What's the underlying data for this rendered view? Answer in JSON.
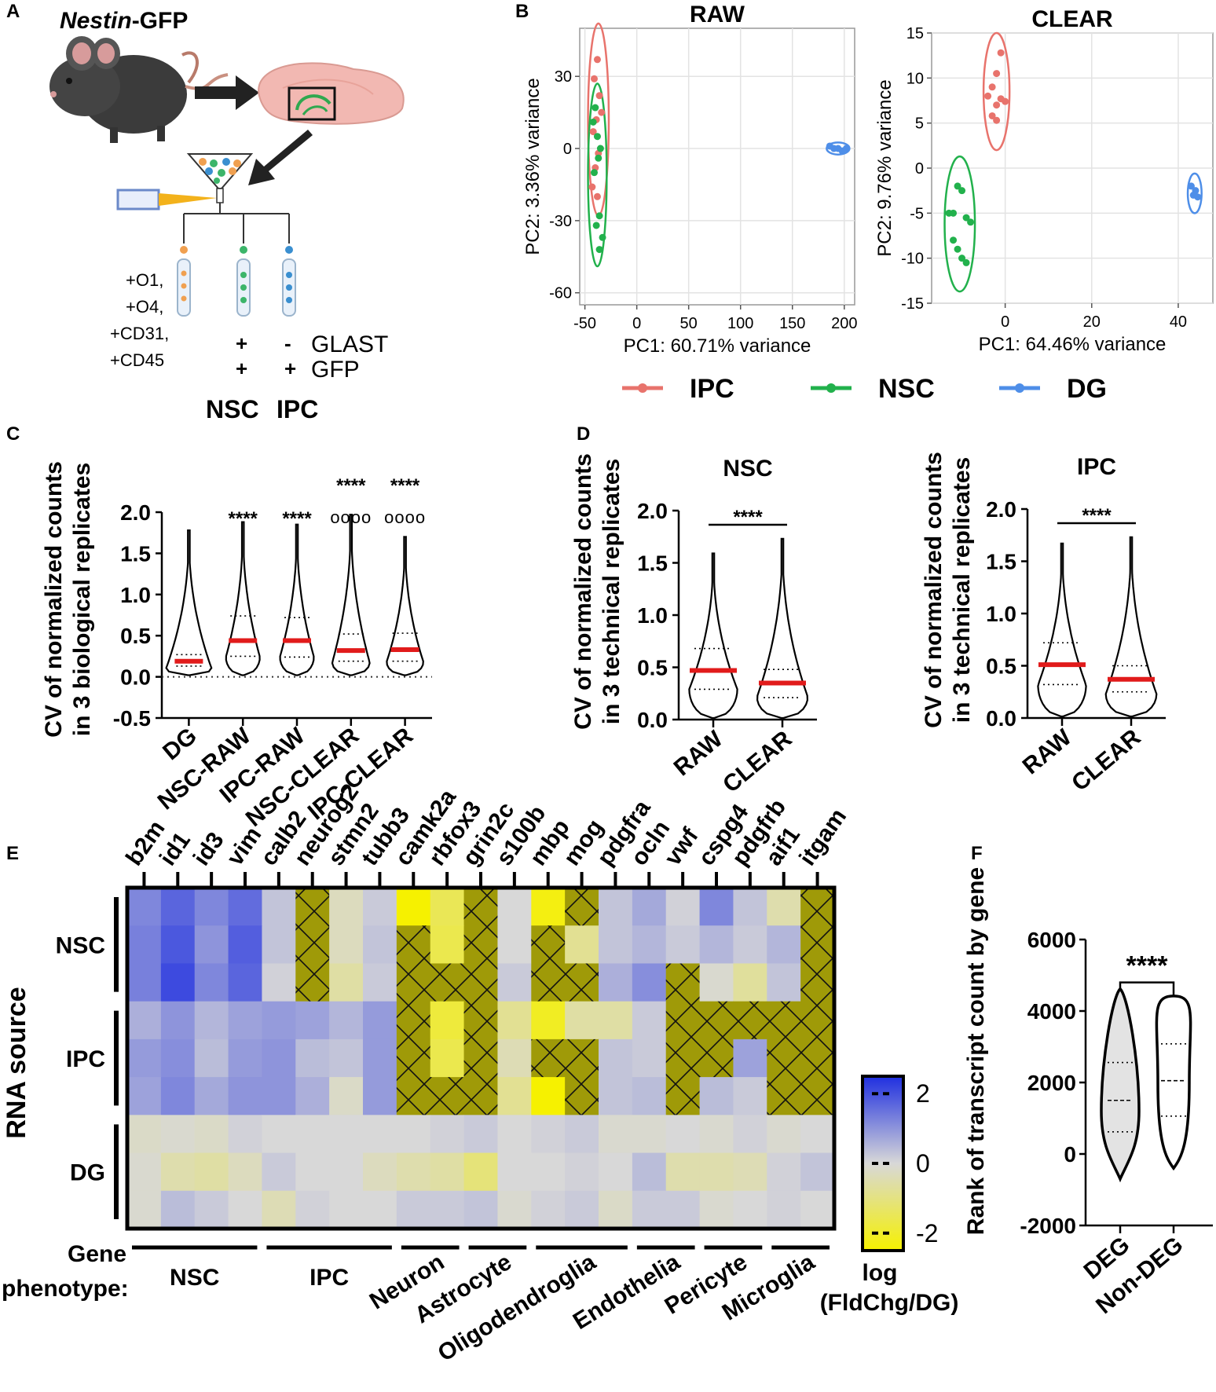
{
  "panel_labels": {
    "a": "A",
    "b": "B",
    "c": "C",
    "d": "D",
    "e": "E",
    "f": "F"
  },
  "panel_a": {
    "title_italic": "Nestin",
    "title_rest": "-GFP",
    "markers_left": [
      "+O1,",
      "+O4,",
      "+CD31,",
      "+CD45"
    ],
    "glast_row": [
      "+",
      "-",
      "GLAST"
    ],
    "gfp_row": [
      "+",
      "+",
      "GFP"
    ],
    "populations": [
      "NSC",
      "IPC"
    ],
    "colors": {
      "orange": "#f0a050",
      "green": "#3cb56a",
      "blue": "#3a8fd0",
      "mouse": "#3b3b3b",
      "brain": "#f2b8b2"
    }
  },
  "panel_b": {
    "chart_data": [
      {
        "type": "scatter",
        "title": "RAW",
        "xlabel": "PC1: 60.71% variance",
        "ylabel": "PC2: 3.36% variance",
        "xlim": [
          -55,
          210
        ],
        "ylim": [
          -65,
          50
        ],
        "xticks": [
          -50,
          0,
          50,
          100,
          150,
          200
        ],
        "yticks": [
          30,
          0,
          -30,
          -60
        ],
        "series": [
          {
            "name": "IPC",
            "color": "#e8736c",
            "x": [
              -38,
              -41,
              -36,
              -39,
              -42,
              -37,
              -40,
              -34,
              -38,
              -43
            ],
            "y": [
              37,
              29,
              22,
              12,
              7,
              -2,
              -8,
              15,
              -20,
              -16
            ]
          },
          {
            "name": "NSC",
            "color": "#22b14c",
            "x": [
              -40,
              -42,
              -38,
              -35,
              -37,
              -41,
              -36,
              -33,
              -36,
              -39
            ],
            "y": [
              17,
              11,
              5,
              0,
              -4,
              -10,
              -28,
              -37,
              -42,
              -32
            ]
          },
          {
            "name": "DG",
            "color": "#4e8ee8",
            "x": [
              186,
              190,
              194,
              198,
              202
            ],
            "y": [
              1,
              0,
              0,
              -1,
              0
            ]
          }
        ],
        "ellipses": [
          {
            "series": "IPC",
            "cx": -37,
            "cy": 12,
            "rx": 10,
            "ry": 40
          },
          {
            "series": "NSC",
            "cx": -38,
            "cy": -11,
            "rx": 9,
            "ry": 38
          },
          {
            "series": "DG",
            "cx": 194,
            "cy": 0,
            "rx": 11,
            "ry": 2.5
          }
        ]
      },
      {
        "type": "scatter",
        "title": "CLEAR",
        "xlabel": "PC1: 64.46% variance",
        "ylabel": "PC2: 9.76% variance",
        "xlim": [
          -17,
          48
        ],
        "ylim": [
          -15,
          15
        ],
        "xticks": [
          0,
          20,
          40
        ],
        "yticks": [
          15,
          10,
          5,
          0,
          -5,
          -10,
          -15
        ],
        "series": [
          {
            "name": "IPC",
            "color": "#e8736c",
            "x": [
              -1,
              -2,
              -3,
              -4,
              -1,
              -2,
              0,
              -3,
              -2
            ],
            "y": [
              12.8,
              10.5,
              9,
              8,
              7.7,
              7,
              7.4,
              5.8,
              5.3
            ]
          },
          {
            "name": "NSC",
            "color": "#22b14c",
            "x": [
              -11,
              -10,
              -12,
              -9,
              -8,
              -12,
              -11,
              -10,
              -9,
              -13
            ],
            "y": [
              -2,
              -2.5,
              -5,
              -5.5,
              -6,
              -8,
              -9,
              -10,
              -10.5,
              -5
            ]
          },
          {
            "name": "DG",
            "color": "#4e8ee8",
            "x": [
              43,
              44,
              43.5,
              44.5
            ],
            "y": [
              -2,
              -2.5,
              -3,
              -3.2
            ]
          }
        ],
        "ellipses": [
          {
            "series": "IPC",
            "cx": -2,
            "cy": 8.5,
            "rx": 3,
            "ry": 6.5
          },
          {
            "series": "NSC",
            "cx": -10.5,
            "cy": -6.2,
            "rx": 3.5,
            "ry": 7.5
          },
          {
            "series": "DG",
            "cx": 43.8,
            "cy": -2.8,
            "rx": 1.6,
            "ry": 2.2
          }
        ]
      }
    ],
    "legend": [
      {
        "label": "IPC",
        "color": "#e8736c"
      },
      {
        "label": "NSC",
        "color": "#22b14c"
      },
      {
        "label": "DG",
        "color": "#4e8ee8"
      }
    ]
  },
  "panel_c": {
    "chart_data": {
      "type": "violin",
      "ylabel_line1": "CV of normalized counts",
      "ylabel_line2": "in 3 biological replicates",
      "ylim": [
        -0.5,
        2.0
      ],
      "yticks": [
        "2.0",
        "1.5",
        "1.0",
        "0.5",
        "0.0",
        "-0.5"
      ],
      "ytick_values": [
        2.0,
        1.5,
        1.0,
        0.5,
        0.0,
        -0.5
      ],
      "categories": [
        "DG",
        "NSC-RAW",
        "IPC-RAW",
        "NSC-CLEAR",
        "IPC-CLEAR"
      ],
      "means": [
        0.19,
        0.44,
        0.44,
        0.32,
        0.33
      ],
      "q1": [
        0.13,
        0.25,
        0.24,
        0.19,
        0.19
      ],
      "q3": [
        0.27,
        0.74,
        0.72,
        0.52,
        0.53
      ],
      "max": [
        1.78,
        1.88,
        1.85,
        1.97,
        1.7
      ],
      "width": [
        0.95,
        0.62,
        0.62,
        0.72,
        0.7
      ],
      "stars_top": [
        "",
        "****",
        "****",
        "****",
        "****"
      ],
      "circles": [
        "",
        "",
        "",
        "oooo",
        "oooo"
      ]
    }
  },
  "panel_d": {
    "ylabel_line1": "CV of normalized counts",
    "ylabel_line2": "in 3 technical replicates",
    "chart_data": [
      {
        "type": "violin",
        "title": "NSC",
        "categories": [
          "RAW",
          "CLEAR"
        ],
        "ylim": [
          0,
          2.0
        ],
        "yticks": [
          "2.0",
          "1.5",
          "1.0",
          "0.5",
          "0.0"
        ],
        "means": [
          0.47,
          0.35
        ],
        "q1": [
          0.29,
          0.21
        ],
        "q3": [
          0.68,
          0.48
        ],
        "max": [
          1.59,
          1.73
        ],
        "width": [
          0.9,
          0.95
        ],
        "sig": "****"
      },
      {
        "type": "violin",
        "title": "IPC",
        "categories": [
          "RAW",
          "CLEAR"
        ],
        "ylim": [
          0,
          2.0
        ],
        "yticks": [
          "2.0",
          "1.5",
          "1.0",
          "0.5",
          "0.0"
        ],
        "means": [
          0.51,
          0.37
        ],
        "q1": [
          0.32,
          0.25
        ],
        "q3": [
          0.72,
          0.5
        ],
        "max": [
          1.67,
          1.73
        ],
        "width": [
          0.9,
          0.95
        ],
        "sig": "****"
      }
    ]
  },
  "panel_e": {
    "chart_data": {
      "type": "heatmap",
      "genes": [
        "b2m",
        "id1",
        "id3",
        "vim",
        "calb2",
        "neurog2",
        "stmn2",
        "tubb3",
        "camk2a",
        "rbfox3",
        "grin2c",
        "s100b",
        "mbp",
        "mog",
        "pdgfra",
        "ocln",
        "vwf",
        "cspg4",
        "pdgfrb",
        "aif1",
        "itgam"
      ],
      "row_groups": [
        "NSC",
        "IPC",
        "DG"
      ],
      "row_group_title": "RNA source",
      "values": [
        [
          1.2,
          1.7,
          1.2,
          1.6,
          0.3,
          null,
          -0.3,
          0.2,
          -2.5,
          -1.5,
          null,
          0.0,
          -2.3,
          null,
          0.3,
          0.7,
          0.1,
          1.2,
          0.3,
          -0.5,
          null
        ],
        [
          1.3,
          1.9,
          1.0,
          1.8,
          0.3,
          null,
          -0.3,
          0.3,
          null,
          -1.6,
          null,
          0.0,
          null,
          -0.8,
          0.3,
          0.5,
          0.2,
          0.5,
          0.2,
          0.5,
          null
        ],
        [
          1.3,
          2.1,
          1.2,
          1.7,
          0.1,
          null,
          -0.6,
          0.2,
          null,
          null,
          null,
          0.2,
          null,
          null,
          0.6,
          1.1,
          null,
          -0.1,
          -0.7,
          0.3,
          null
        ],
        [
          0.6,
          1.0,
          0.5,
          0.8,
          0.9,
          0.8,
          0.5,
          0.9,
          null,
          -1.8,
          null,
          -0.8,
          -2.1,
          -0.6,
          -0.6,
          0.2,
          null,
          null,
          null,
          null,
          null
        ],
        [
          0.9,
          1.1,
          0.4,
          0.9,
          1.0,
          0.4,
          0.3,
          0.9,
          null,
          -1.6,
          null,
          -0.4,
          null,
          null,
          0.3,
          0.2,
          null,
          null,
          0.8,
          null,
          null
        ],
        [
          0.8,
          1.2,
          0.7,
          1.0,
          1.0,
          0.6,
          -0.2,
          0.9,
          null,
          null,
          null,
          -0.8,
          -2.6,
          null,
          0.3,
          0.4,
          null,
          0.4,
          0.2,
          null,
          null
        ],
        [
          -0.2,
          -0.1,
          -0.2,
          0.1,
          0.0,
          0.0,
          0.0,
          0.0,
          0.0,
          0.1,
          0.2,
          0.0,
          0.1,
          0.2,
          -0.1,
          -0.1,
          0.0,
          -0.1,
          0.1,
          -0.1,
          0.0
        ],
        [
          -0.1,
          -0.5,
          -0.6,
          -0.3,
          0.2,
          0.0,
          0.0,
          -0.3,
          -0.5,
          -0.6,
          -1.1,
          0.0,
          0.0,
          0.1,
          0.0,
          0.4,
          -0.5,
          -0.5,
          -0.4,
          0.1,
          0.3
        ],
        [
          -0.1,
          0.4,
          0.2,
          0.0,
          -0.4,
          0.1,
          0.0,
          0.0,
          0.2,
          0.2,
          0.3,
          -0.1,
          0.1,
          0.2,
          -0.2,
          0.2,
          0.2,
          -0.1,
          0.0,
          0.1,
          0.0
        ]
      ],
      "colorbar": {
        "label_line1": "log",
        "label_line2": "(FldChg/DG)",
        "ticks": [
          "2",
          "0",
          "-2"
        ],
        "tick_values": [
          2,
          0,
          -2
        ],
        "range": [
          -2.5,
          2.5
        ]
      },
      "gene_phenotype_title_line1": "Gene",
      "gene_phenotype_title_line2": "phenotype:",
      "phenotypes": [
        {
          "label": "NSC",
          "start": 0,
          "end": 3
        },
        {
          "label": "IPC",
          "start": 4,
          "end": 7
        },
        {
          "label": "Neuron",
          "start": 8,
          "end": 9
        },
        {
          "label": "Astrocyte",
          "start": 10,
          "end": 11
        },
        {
          "label": "Oligodendroglia",
          "start": 12,
          "end": 14
        },
        {
          "label": "Endothelia",
          "start": 15,
          "end": 16
        },
        {
          "label": "Pericyte",
          "start": 17,
          "end": 18
        },
        {
          "label": "Microglia",
          "start": 19,
          "end": 20
        }
      ],
      "colors": {
        "high": "#1f2fe0",
        "mid": "#d8d8d8",
        "low": "#f6f100",
        "missing": "#9f9a08"
      }
    }
  },
  "panel_f": {
    "chart_data": {
      "type": "violin",
      "ylabel": "Rank of transcript count by gene",
      "ylim": [
        -2000,
        6000
      ],
      "yticks": [
        "6000",
        "4000",
        "2000",
        "0",
        "-2000"
      ],
      "ytick_values": [
        6000,
        4000,
        2000,
        0,
        -2000
      ],
      "categories": [
        "DEG",
        "Non-DEG"
      ],
      "median": [
        1500,
        2050
      ],
      "q1": [
        620,
        1060
      ],
      "q3": [
        2560,
        3080
      ],
      "min": [
        -700,
        -400
      ],
      "max": [
        4620,
        4420
      ],
      "sig": "****",
      "fill": [
        "#e3e3e3",
        "#ffffff"
      ]
    }
  }
}
